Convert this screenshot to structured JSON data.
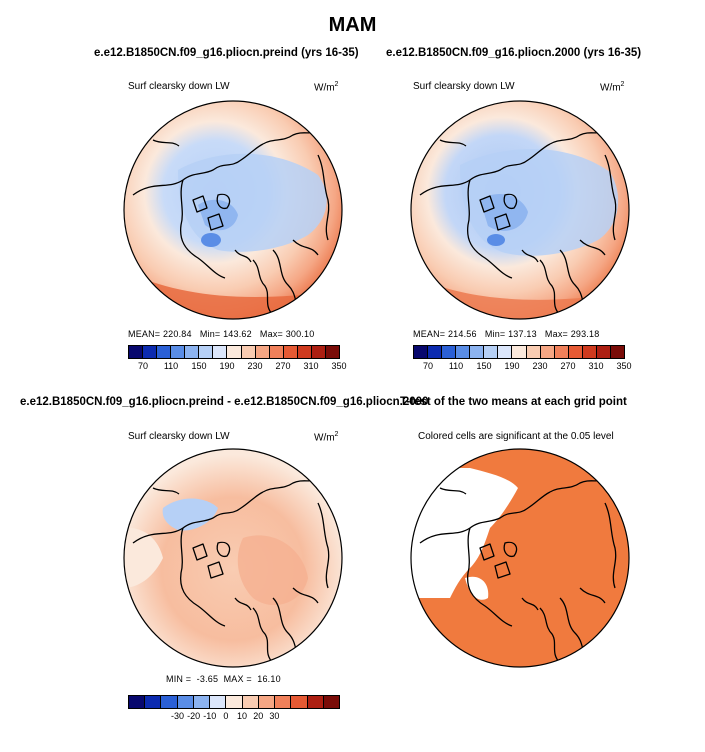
{
  "figure": {
    "title": "MAM",
    "titles": {
      "preind": "e.e12.B1850CN.f09_g16.pliocn.preind (yrs 16-35)",
      "p2000": "e.e12.B1850CN.f09_g16.pliocn.2000 (yrs 16-35)",
      "diff": "e.e12.B1850CN.f09_g16.pliocn.preind - e.e12.B1850CN.f09_g16.pliocn.2000",
      "ttest": "T-test of the two means at each grid point"
    },
    "variable": "Surf clearsky down LW",
    "units_base": "W/m",
    "units_exp": "2",
    "significance_note": "Colored cells are significant at the 0.05 level"
  },
  "chart_data": [
    {
      "type": "heatmap",
      "title": "e.e12.B1850CN.f09_g16.pliocn.preind (yrs 16-35)",
      "variable": "Surf clearsky down LW",
      "units": "W/m2",
      "projection": "north polar stereographic",
      "stats": {
        "mean_label": "MEAN=",
        "mean": "220.84",
        "min_label": "Min=",
        "min": "143.62",
        "max_label": "Max=",
        "max": "300.10"
      },
      "colorbar": {
        "ticks": [
          "70",
          "110",
          "150",
          "190",
          "230",
          "270",
          "310",
          "350"
        ],
        "colors": [
          "#08086e",
          "#0c2bb0",
          "#2b60d6",
          "#5a8de6",
          "#8cb3f0",
          "#b6d0f6",
          "#dbe6fb",
          "#fbe9dc",
          "#f9ccb2",
          "#f5a684",
          "#f0805a",
          "#e65a34",
          "#cf3a1e",
          "#ad1f12",
          "#7a0c08"
        ]
      }
    },
    {
      "type": "heatmap",
      "title": "e.e12.B1850CN.f09_g16.pliocn.2000 (yrs 16-35)",
      "variable": "Surf clearsky down LW",
      "units": "W/m2",
      "projection": "north polar stereographic",
      "stats": {
        "mean_label": "MEAN=",
        "mean": "214.56",
        "min_label": "Min=",
        "min": "137.13",
        "max_label": "Max=",
        "max": "293.18"
      },
      "colorbar": {
        "ticks": [
          "70",
          "110",
          "150",
          "190",
          "230",
          "270",
          "310",
          "350"
        ],
        "colors": [
          "#08086e",
          "#0c2bb0",
          "#2b60d6",
          "#5a8de6",
          "#8cb3f0",
          "#b6d0f6",
          "#dbe6fb",
          "#fbe9dc",
          "#f9ccb2",
          "#f5a684",
          "#f0805a",
          "#e65a34",
          "#cf3a1e",
          "#ad1f12",
          "#7a0c08"
        ]
      }
    },
    {
      "type": "heatmap",
      "title": "e.e12.B1850CN.f09_g16.pliocn.preind - e.e12.B1850CN.f09_g16.pliocn.2000",
      "variable": "Surf clearsky down LW",
      "units": "W/m2",
      "projection": "north polar stereographic",
      "stats": {
        "min_label": "MIN =",
        "min": "-3.65",
        "max_label": "MAX =",
        "max": "16.10"
      },
      "colorbar": {
        "ticks": [
          "-30",
          "-20",
          "-10",
          "0",
          "10",
          "20",
          "30"
        ],
        "colors": [
          "#08086e",
          "#0c2bb0",
          "#2b60d6",
          "#5a8de6",
          "#8cb3f0",
          "#dbe6fb",
          "#fbe9dc",
          "#f9ccb2",
          "#f5a684",
          "#f0805a",
          "#e65a34",
          "#ad1f12",
          "#7a0c08"
        ]
      }
    },
    {
      "type": "heatmap",
      "title": "T-test of the two means at each grid point",
      "note": "Colored cells are significant at the 0.05 level",
      "projection": "north polar stereographic",
      "significant_color": "#f07a3e"
    }
  ]
}
